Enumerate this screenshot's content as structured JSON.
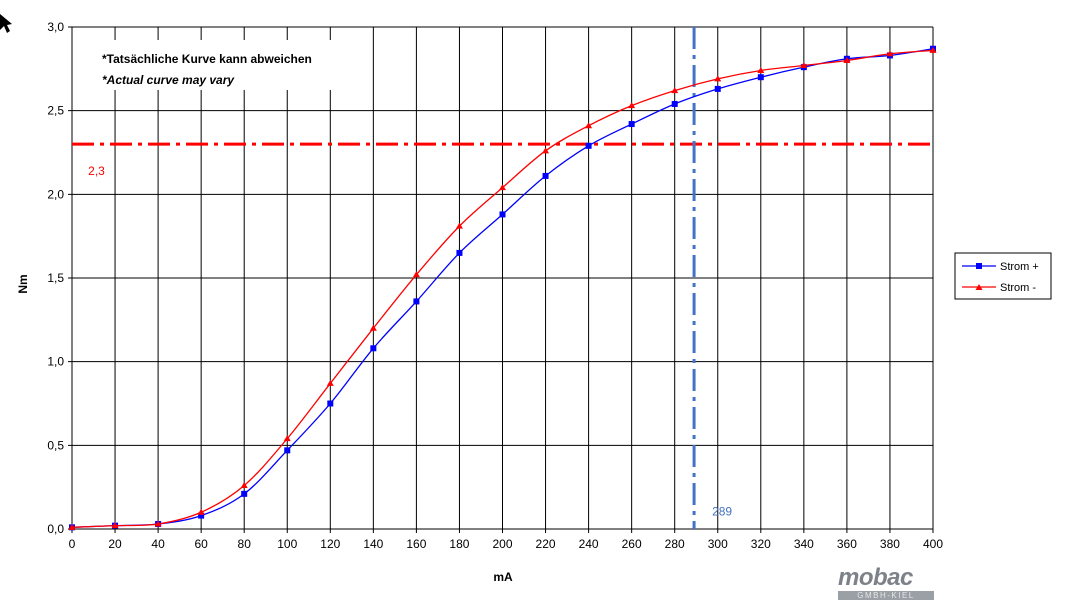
{
  "chart_data": {
    "type": "line",
    "xlabel": "mA",
    "ylabel": "Nm",
    "xlim": [
      0,
      400
    ],
    "ylim": [
      0,
      3.0
    ],
    "x_ticks": [
      "0",
      "20",
      "40",
      "60",
      "80",
      "100",
      "120",
      "140",
      "160",
      "180",
      "200",
      "220",
      "240",
      "260",
      "280",
      "300",
      "320",
      "340",
      "360",
      "380",
      "400"
    ],
    "y_ticks": [
      "0,0",
      "0,5",
      "1,0",
      "1,5",
      "2,0",
      "2,5",
      "3,0"
    ],
    "grid": true,
    "legend_position": "right",
    "x": [
      0,
      20,
      40,
      60,
      80,
      100,
      120,
      140,
      160,
      180,
      200,
      220,
      240,
      260,
      280,
      300,
      320,
      340,
      360,
      380,
      400
    ],
    "series": [
      {
        "name": "Strom +",
        "color": "#0000ff",
        "marker": "square",
        "values": [
          0.01,
          0.02,
          0.03,
          0.08,
          0.21,
          0.47,
          0.75,
          1.08,
          1.36,
          1.65,
          1.88,
          2.11,
          2.29,
          2.42,
          2.54,
          2.63,
          2.7,
          2.76,
          2.81,
          2.83,
          2.87
        ]
      },
      {
        "name": "Strom -",
        "color": "#ff0000",
        "marker": "triangle",
        "values": [
          0.01,
          0.02,
          0.03,
          0.1,
          0.26,
          0.54,
          0.87,
          1.2,
          1.52,
          1.81,
          2.04,
          2.26,
          2.41,
          2.53,
          2.62,
          2.69,
          2.74,
          2.77,
          2.8,
          2.84,
          2.86
        ]
      }
    ],
    "reference_lines": [
      {
        "axis": "y",
        "value": 2.3,
        "label": "2,3",
        "color": "#ff0000"
      },
      {
        "axis": "x",
        "value": 289,
        "label": "289",
        "color": "#4472c4"
      }
    ],
    "annotations": [
      "*Tatsächliche Kurve kann abweichen",
      "*Actual curve may vary"
    ]
  },
  "logo": {
    "word": "mobac",
    "sub": "GMBH-KIEL",
    "color": "#7d8289"
  }
}
